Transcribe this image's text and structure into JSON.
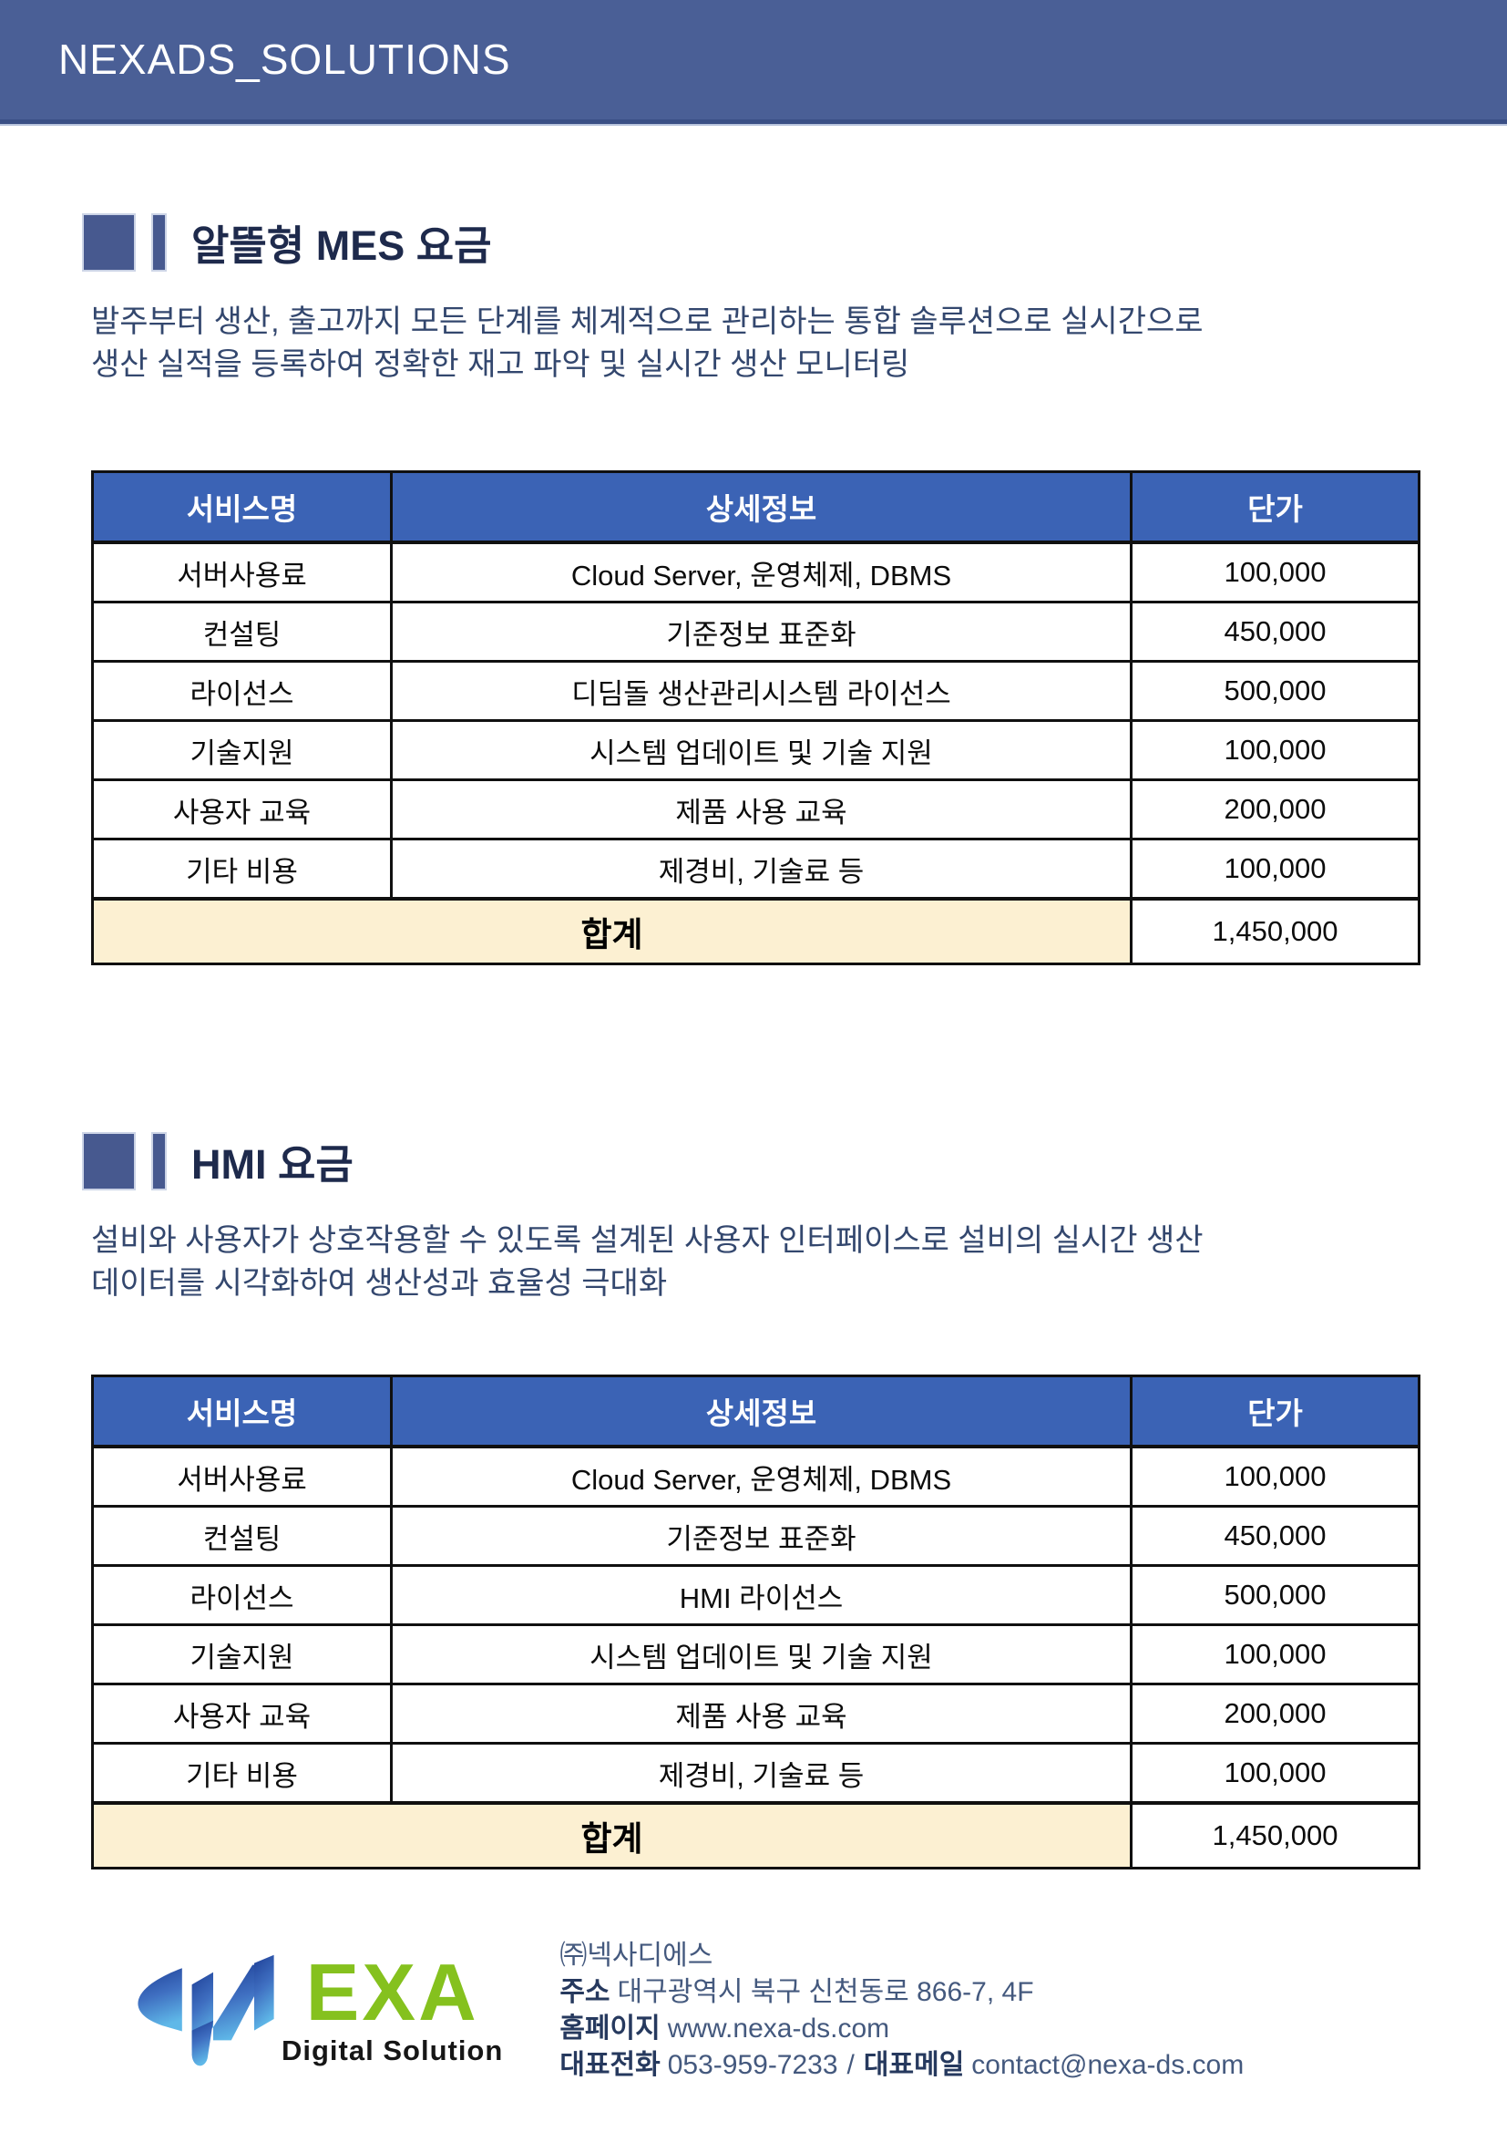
{
  "banner": {
    "title": "NEXADS_SOLUTIONS"
  },
  "colors": {
    "banner_bg": "#4a5f96",
    "banner_border": "#3a4f85",
    "section_marker": "#47598f",
    "section_title_text": "#1e2a4c",
    "description_text": "#33476e",
    "table_header_bg": "#3b63b5",
    "table_header_text": "#ffffff",
    "table_border": "#101010",
    "total_row_bg": "#fcf0d2",
    "logo_green": "#85c11e",
    "logo_blue_gradient": [
      "#1e3f96",
      "#5fb8e8"
    ]
  },
  "sections": [
    {
      "title": "알뜰형 MES 요금",
      "description_lines": [
        "발주부터 생산, 출고까지 모든 단계를 체계적으로 관리하는 통합 솔루션으로 실시간으로",
        "생산 실적을 등록하여 정확한 재고 파악 및 실시간 생산 모니터링"
      ],
      "table": {
        "columns": [
          "서비스명",
          "상세정보",
          "단가"
        ],
        "rows": [
          [
            "서버사용료",
            "Cloud Server, 운영체제, DBMS",
            "100,000"
          ],
          [
            "컨설팅",
            "기준정보 표준화",
            "450,000"
          ],
          [
            "라이선스",
            "디딤돌 생산관리시스템 라이선스",
            "500,000"
          ],
          [
            "기술지원",
            "시스템 업데이트 및 기술 지원",
            "100,000"
          ],
          [
            "사용자 교육",
            "제품 사용 교육",
            "200,000"
          ],
          [
            "기타 비용",
            "제경비, 기술료 등",
            "100,000"
          ]
        ],
        "total_label": "합계",
        "total_value": "1,450,000"
      }
    },
    {
      "title": "HMI 요금",
      "description_lines": [
        "설비와 사용자가 상호작용할 수 있도록 설계된 사용자 인터페이스로 설비의 실시간 생산",
        "데이터를 시각화하여 생산성과 효율성 극대화"
      ],
      "table": {
        "columns": [
          "서비스명",
          "상세정보",
          "단가"
        ],
        "rows": [
          [
            "서버사용료",
            "Cloud Server, 운영체제, DBMS",
            "100,000"
          ],
          [
            "컨설팅",
            "기준정보 표준화",
            "450,000"
          ],
          [
            "라이선스",
            "HMI 라이선스",
            "500,000"
          ],
          [
            "기술지원",
            "시스템 업데이트 및 기술 지원",
            "100,000"
          ],
          [
            "사용자 교육",
            "제품 사용 교육",
            "200,000"
          ],
          [
            "기타 비용",
            "제경비, 기술료 등",
            "100,000"
          ]
        ],
        "total_label": "합계",
        "total_value": "1,450,000"
      }
    }
  ],
  "footer": {
    "logo_exa": "EXA",
    "logo_sub": "Digital Solution",
    "company": "㈜넥사디에스",
    "address_label": "주소",
    "address_value": "대구광역시 북구 신천동로 866-7, 4F",
    "website_label": "홈페이지",
    "website_value": "www.nexa-ds.com",
    "phone_label": "대표전화",
    "phone_value": "053-959-7233",
    "separator": "/",
    "email_label": "대표메일",
    "email_value": "contact@nexa-ds.com"
  }
}
